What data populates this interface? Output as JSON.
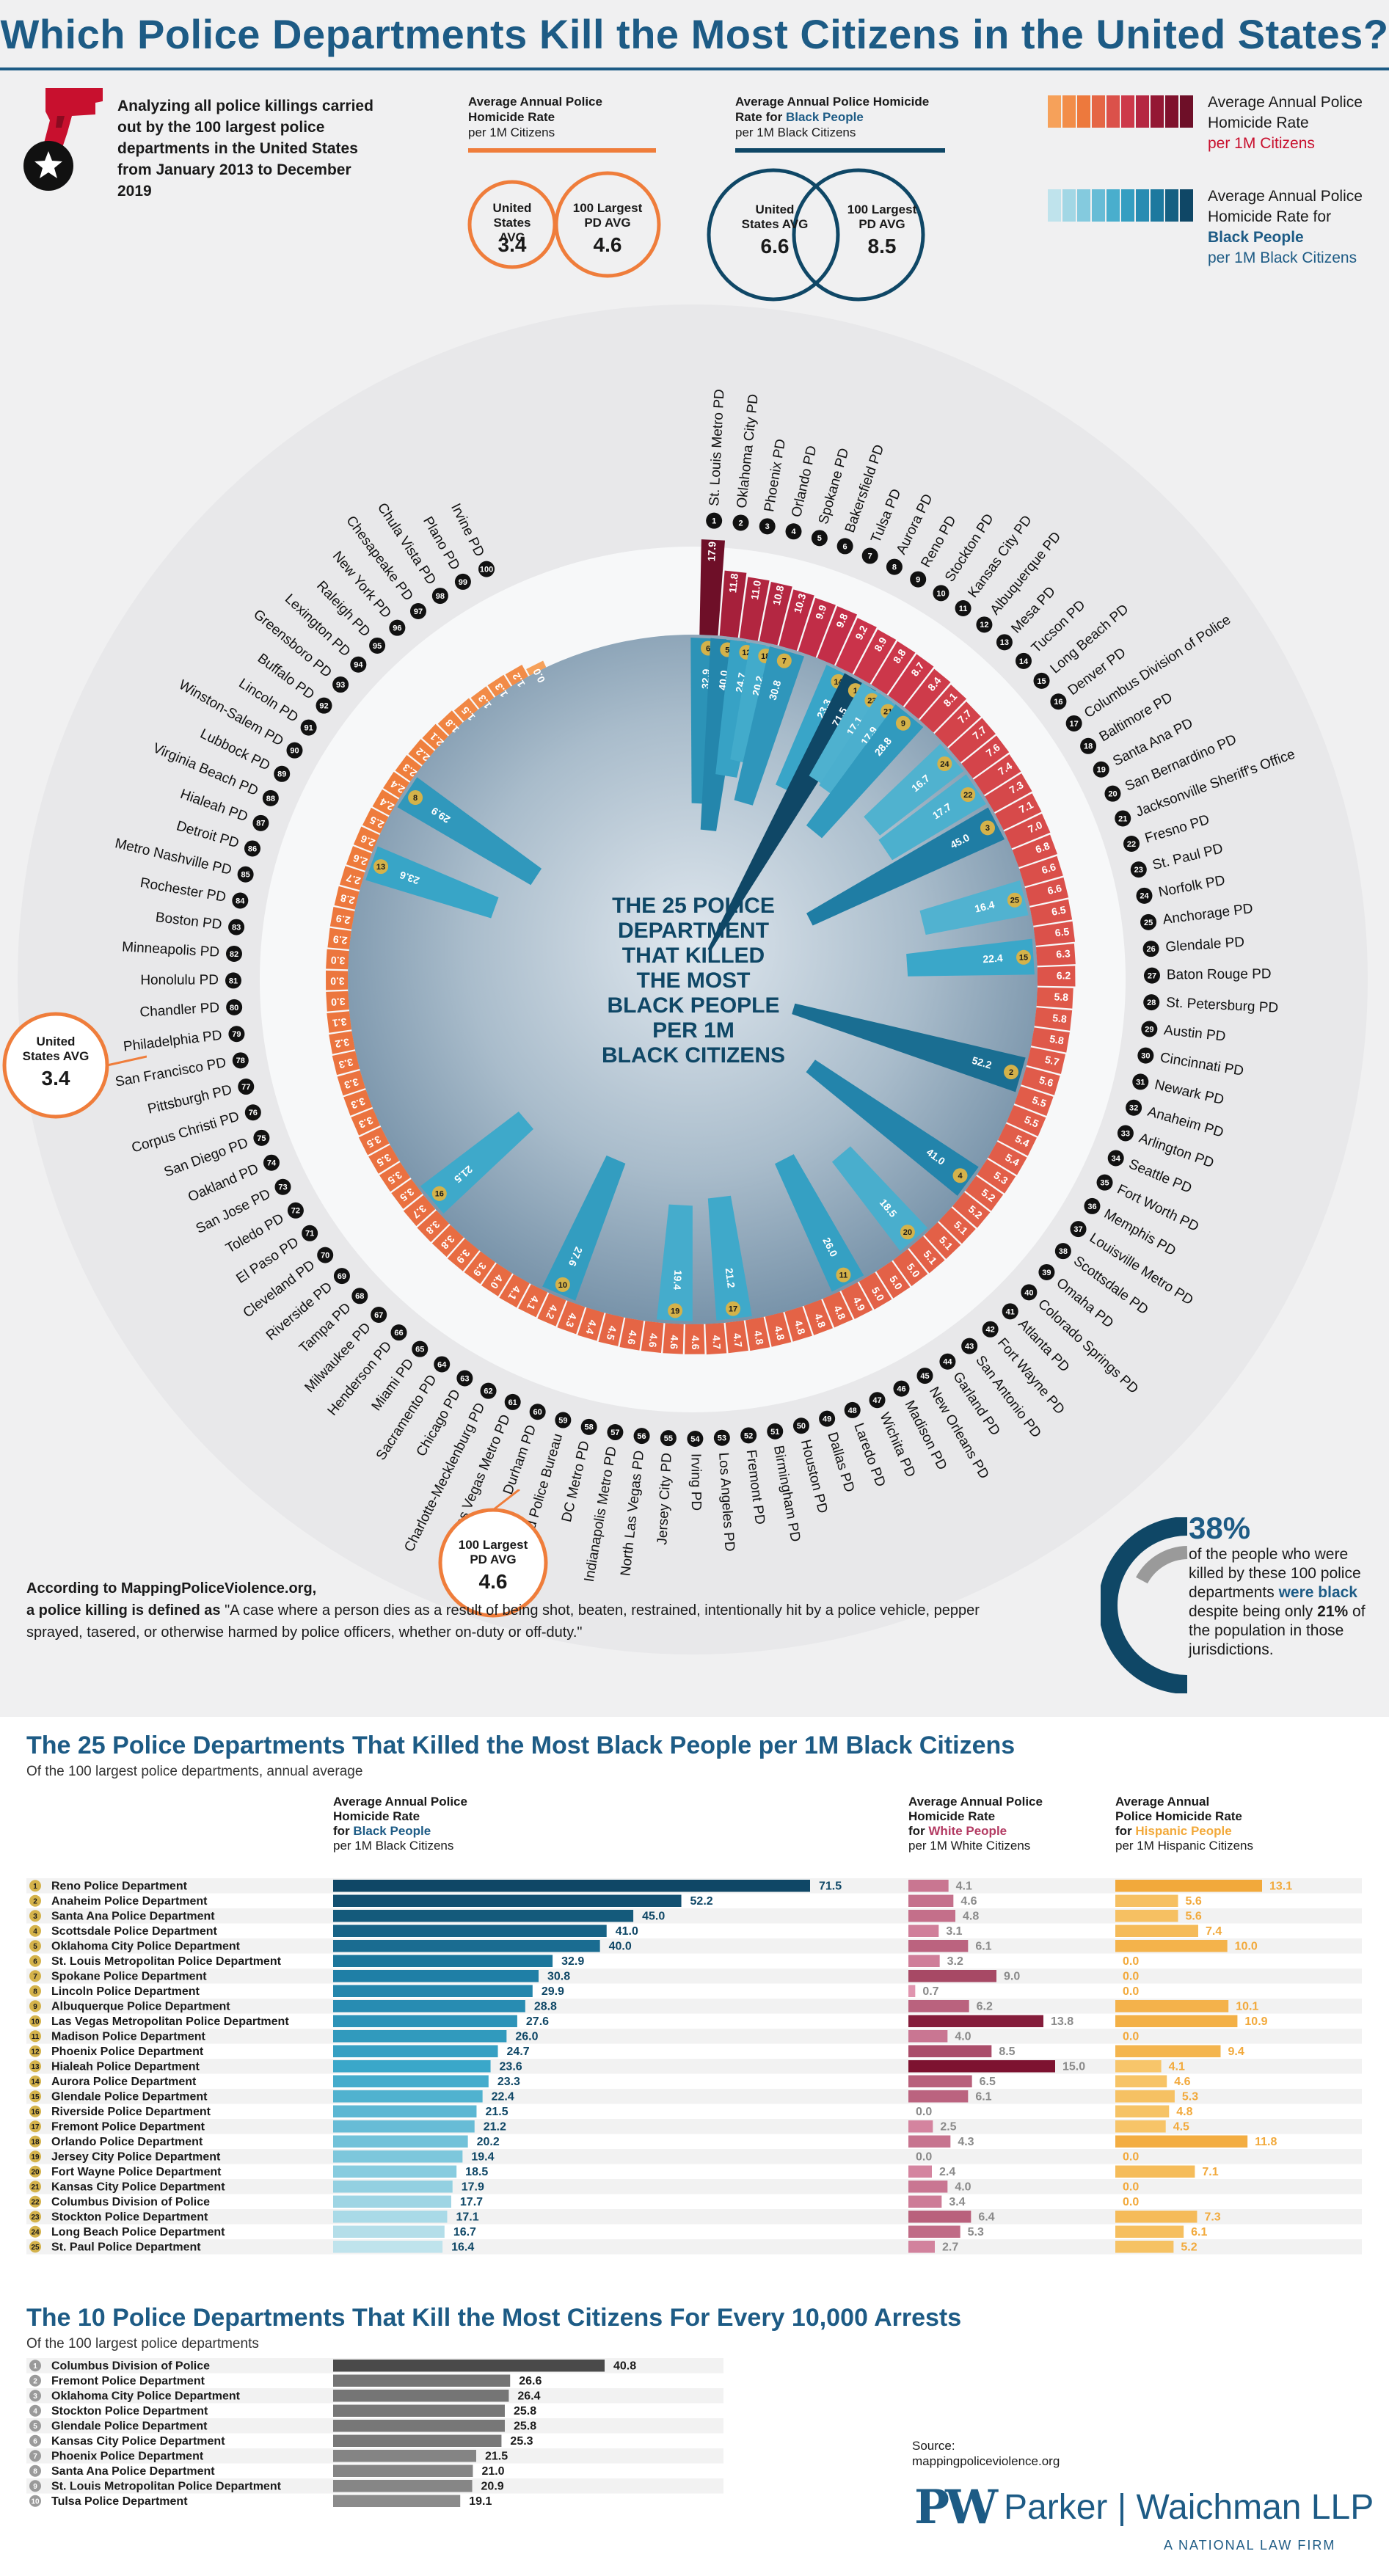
{
  "title": "Which Police Departments Kill the Most Citizens in the United States?",
  "intro": "Analyzing all police killings carried out by the 100 largest police departments in the United States from January 2013 to December 2019",
  "headers": {
    "overall_title": "Average Annual Police Homicide Rate",
    "overall_sub": "per 1M Citizens",
    "black_title_a": "Average Annual Police Homicide Rate for ",
    "black_title_b": "Black People",
    "black_sub": "per 1M Black Citizens"
  },
  "avg_circles": {
    "overall": [
      {
        "label": "United States AVG",
        "value": "3.4"
      },
      {
        "label": "100 Largest PD AVG",
        "value": "4.6"
      }
    ],
    "black": [
      {
        "label": "United States AVG",
        "value": "6.6"
      },
      {
        "label": "100 Largest PD AVG",
        "value": "8.5"
      }
    ]
  },
  "legend": {
    "overall_a": "Average Annual Police Homicide Rate",
    "overall_b": "per 1M Citizens",
    "black_a": "Average Annual Police Homicide Rate for",
    "black_b": "Black People",
    "black_c": "per 1M Black Citizens"
  },
  "center_label": [
    "THE 25 POLICE",
    "DEPARTMENT",
    "THAT KILLED",
    "THE MOST",
    "BLACK PEOPLE",
    "PER 1M",
    "BLACK CITIZENS"
  ],
  "side_callouts": {
    "us_avg_label": [
      "United",
      "States AVG"
    ],
    "us_avg_value": "3.4",
    "pd_avg_label": [
      "100 Largest",
      "PD AVG"
    ],
    "pd_avg_value": "4.6"
  },
  "definition": {
    "lead_a": "According to MappingPoliceViolence.org,",
    "lead_b": "a police killing is defined as",
    "quote": "\"A case where a person dies as a result of being shot, beaten, restrained, intentionally hit by a police vehicle, pepper sprayed, tasered, or otherwise harmed by police officers, whether on-duty or off-duty.\""
  },
  "stat": {
    "pct": "38%",
    "text_a": "of the people who were killed by these 100 police departments",
    "text_b": "were black",
    "text_c": "despite being only",
    "pct2": "21%",
    "text_d": "of the population in those jurisdictions."
  },
  "section2": {
    "title": "The 25 Police Departments That Killed the Most Black People per 1M Black Citizens",
    "sub": "Of the 100 largest police departments, annual average",
    "col_black": [
      "Average Annual Police",
      "Homicide Rate",
      "for ",
      "Black People",
      "per 1M Black Citizens"
    ],
    "col_white": [
      "Average Annual Police",
      "Homicide Rate",
      "for ",
      "White People",
      "per 1M White Citizens"
    ],
    "col_hisp": [
      "Average Annual",
      "Police Homicide Rate",
      "for ",
      "Hispanic People",
      "per 1M Hispanic Citizens"
    ]
  },
  "section3": {
    "title": "The 10 Police Departments That Kill the Most Citizens For Every 10,000 Arrests",
    "sub": "Of the 100 largest police departments"
  },
  "source": {
    "label": "Source:",
    "url": "mappingpoliceviolence.org"
  },
  "firm": {
    "mark": "PW",
    "name": "Parker | Waichman LLP",
    "tag": "A NATIONAL LAW FIRM"
  },
  "colors": {
    "navy": "#1d5b85",
    "orange": "#ef7d3b",
    "maroon": "#7d1230",
    "teal": "#3aa7c9",
    "black_dark": "#0f4766",
    "white_bar": "#b33a62",
    "hisp_bar": "#f2a93b",
    "gray_bar": "#8a8a8a"
  },
  "chart_data": [
    {
      "type": "bar",
      "title": "",
      "radial": true,
      "ylabel": "Average Annual Police Homicide Rate per 1M Citizens",
      "categories": [
        "St. Louis Metro PD",
        "Oklahoma City PD",
        "Phoenix PD",
        "Orlando PD",
        "Spokane PD",
        "Bakersfield PD",
        "Tulsa PD",
        "Aurora PD",
        "Reno PD",
        "Stockton PD",
        "Kansas City PD",
        "Albuquerque PD",
        "Mesa PD",
        "Tucson PD",
        "Long Beach PD",
        "Denver PD",
        "Columbus Division of Police",
        "Baltimore PD",
        "Santa Ana PD",
        "San Bernardino PD",
        "Jacksonville Sheriff's Office",
        "Fresno PD",
        "St. Paul PD",
        "Norfolk PD",
        "Anchorage PD",
        "Glendale PD",
        "Baton Rouge PD",
        "St. Petersburg PD",
        "Austin PD",
        "Cincinnati PD",
        "Newark PD",
        "Anaheim PD",
        "Arlington PD",
        "Seattle PD",
        "Fort Worth PD",
        "Memphis PD",
        "Louisville Metro PD",
        "Scottsdale PD",
        "Omaha PD",
        "Colorado Springs PD",
        "Atlanta PD",
        "Fort Wayne PD",
        "San Antonio PD",
        "Garland PD",
        "New Orleans PD",
        "Madison PD",
        "Wichita PD",
        "Laredo PD",
        "Dallas PD",
        "Houston PD",
        "Birmingham PD",
        "Fremont PD",
        "Los Angeles PD",
        "Irving PD",
        "Jersey City PD",
        "North Las Vegas PD",
        "Indianapolis Metro PD",
        "DC Metro PD",
        "Portland Police Bureau",
        "Durham PD",
        "Las Vegas Metro PD",
        "Charlotte-Mecklenburg PD",
        "Chicago PD",
        "Sacramento PD",
        "Miami PD",
        "Henderson PD",
        "Milwaukee PD",
        "Tampa PD",
        "Riverside PD",
        "Cleveland PD",
        "El Paso PD",
        "Toledo PD",
        "San Jose PD",
        "Oakland PD",
        "San Diego PD",
        "Corpus Christi PD",
        "Pittsburgh PD",
        "San Francisco PD",
        "Philadelphia PD",
        "Chandler PD",
        "Honolulu PD",
        "Minneapolis PD",
        "Boston PD",
        "Rochester PD",
        "Metro Nashville PD",
        "Detroit PD",
        "Hialeah PD",
        "Virginia Beach PD",
        "Lubbock PD",
        "Winston-Salem PD",
        "Lincoln PD",
        "Buffalo PD",
        "Greensboro PD",
        "Lexington PD",
        "Raleigh PD",
        "New York PD",
        "Chesapeake PD",
        "Chula Vista PD",
        "Plano PD",
        "Irvine PD"
      ],
      "values": [
        17.9,
        11.8,
        11.0,
        10.8,
        10.3,
        9.9,
        9.8,
        9.2,
        8.9,
        8.8,
        8.7,
        8.4,
        8.1,
        7.7,
        7.7,
        7.6,
        7.4,
        7.3,
        7.1,
        7.0,
        6.8,
        6.6,
        6.6,
        6.5,
        6.5,
        6.3,
        6.2,
        5.8,
        5.8,
        5.8,
        5.7,
        5.6,
        5.5,
        5.5,
        5.4,
        5.4,
        5.3,
        5.2,
        5.2,
        5.1,
        5.1,
        5.1,
        5.0,
        5.0,
        5.0,
        4.9,
        4.8,
        4.8,
        4.8,
        4.8,
        4.8,
        4.7,
        4.7,
        4.6,
        4.6,
        4.6,
        4.6,
        4.5,
        4.4,
        4.3,
        4.2,
        4.1,
        4.1,
        4.0,
        3.9,
        3.9,
        3.8,
        3.8,
        3.7,
        3.5,
        3.5,
        3.5,
        3.5,
        3.3,
        3.3,
        3.3,
        3.3,
        3.2,
        3.1,
        3.0,
        3.0,
        3.0,
        2.9,
        2.9,
        2.8,
        2.7,
        2.6,
        2.6,
        2.5,
        2.4,
        2.4,
        2.3,
        2.2,
        2.1,
        1.8,
        1.5,
        1.3,
        1.3,
        1.2,
        0.0
      ],
      "black_overlay": [
        {
          "rank": 6,
          "dept_index": 0,
          "value": 32.9
        },
        {
          "rank": 5,
          "dept_index": 1,
          "value": 40.0
        },
        {
          "rank": 12,
          "dept_index": 2,
          "value": 24.7
        },
        {
          "rank": 18,
          "dept_index": 3,
          "value": 20.2
        },
        {
          "rank": 7,
          "dept_index": 4,
          "value": 30.8
        },
        {
          "rank": 14,
          "dept_index": 7,
          "value": 23.3
        },
        {
          "rank": 1,
          "dept_index": 8,
          "value": 71.5
        },
        {
          "rank": 23,
          "dept_index": 9,
          "value": 17.1
        },
        {
          "rank": 21,
          "dept_index": 10,
          "value": 17.9
        },
        {
          "rank": 9,
          "dept_index": 11,
          "value": 28.8
        },
        {
          "rank": 24,
          "dept_index": 14,
          "value": 16.7
        },
        {
          "rank": 22,
          "dept_index": 16,
          "value": 17.7
        },
        {
          "rank": 3,
          "dept_index": 18,
          "value": 45.0
        },
        {
          "rank": 25,
          "dept_index": 22,
          "value": 16.4
        },
        {
          "rank": 15,
          "dept_index": 25,
          "value": 22.4
        },
        {
          "rank": 2,
          "dept_index": 31,
          "value": 52.2
        },
        {
          "rank": 4,
          "dept_index": 37,
          "value": 41.0
        },
        {
          "rank": 20,
          "dept_index": 41,
          "value": 18.5
        },
        {
          "rank": 11,
          "dept_index": 45,
          "value": 26.0
        },
        {
          "rank": 17,
          "dept_index": 51,
          "value": 21.2
        },
        {
          "rank": 19,
          "dept_index": 54,
          "value": 19.4
        },
        {
          "rank": 10,
          "dept_index": 60,
          "value": 27.6
        },
        {
          "rank": 16,
          "dept_index": 68,
          "value": 21.5
        },
        {
          "rank": 13,
          "dept_index": 86,
          "value": 23.6
        },
        {
          "rank": 8,
          "dept_index": 90,
          "value": 29.9
        }
      ]
    },
    {
      "type": "bar",
      "title": "The 25 Police Departments That Killed the Most Black People per 1M Black Citizens",
      "categories": [
        "Reno Police Department",
        "Anaheim Police Department",
        "Santa Ana Police Department",
        "Scottsdale Police Department",
        "Oklahoma City Police Department",
        "St. Louis Metropolitan Police Department",
        "Spokane Police Department",
        "Lincoln Police Department",
        "Albuquerque Police Department",
        "Las Vegas Metropolitan Police Department",
        "Madison Police Department",
        "Phoenix Police Department",
        "Hialeah Police Department",
        "Aurora Police Department",
        "Glendale Police Department",
        "Riverside Police Department",
        "Fremont Police Department",
        "Orlando Police Department",
        "Jersey City Police Department",
        "Fort Wayne Police Department",
        "Kansas City Police Department",
        "Columbus Division of Police",
        "Stockton Police Department",
        "Long Beach Police Department",
        "St. Paul Police Department"
      ],
      "series": [
        {
          "name": "Black People",
          "values": [
            71.5,
            52.2,
            45.0,
            41.0,
            40.0,
            32.9,
            30.8,
            29.9,
            28.8,
            27.6,
            26.0,
            24.7,
            23.6,
            23.3,
            22.4,
            21.5,
            21.2,
            20.2,
            19.4,
            18.5,
            17.9,
            17.7,
            17.1,
            16.7,
            16.4
          ]
        },
        {
          "name": "White People",
          "values": [
            4.1,
            4.6,
            4.8,
            3.1,
            6.1,
            3.2,
            9.0,
            0.7,
            6.2,
            13.8,
            4.0,
            8.5,
            15.0,
            6.5,
            6.1,
            0.0,
            2.5,
            4.3,
            0.0,
            2.4,
            4.0,
            3.4,
            6.4,
            5.3,
            2.7
          ]
        },
        {
          "name": "Hispanic People",
          "values": [
            13.1,
            5.6,
            5.6,
            7.4,
            10.0,
            0.0,
            0.0,
            0.0,
            10.1,
            10.9,
            0.0,
            9.4,
            4.1,
            4.6,
            5.3,
            4.8,
            4.5,
            11.8,
            0.0,
            7.1,
            0.0,
            0.0,
            7.3,
            6.1,
            5.2
          ]
        }
      ]
    },
    {
      "type": "bar",
      "title": "The 10 Police Departments That Kill the Most Citizens For Every 10,000 Arrests",
      "categories": [
        "Columbus Division of Police",
        "Fremont Police Department",
        "Oklahoma City Police Department",
        "Stockton Police Department",
        "Glendale Police Department",
        "Kansas City Police Department",
        "Phoenix Police Department",
        "Santa Ana Police Department",
        "St. Louis Metropolitan Police Department",
        "Tulsa Police Department"
      ],
      "values": [
        40.8,
        26.6,
        26.4,
        25.8,
        25.8,
        25.3,
        21.5,
        21.0,
        20.9,
        19.1
      ]
    }
  ]
}
